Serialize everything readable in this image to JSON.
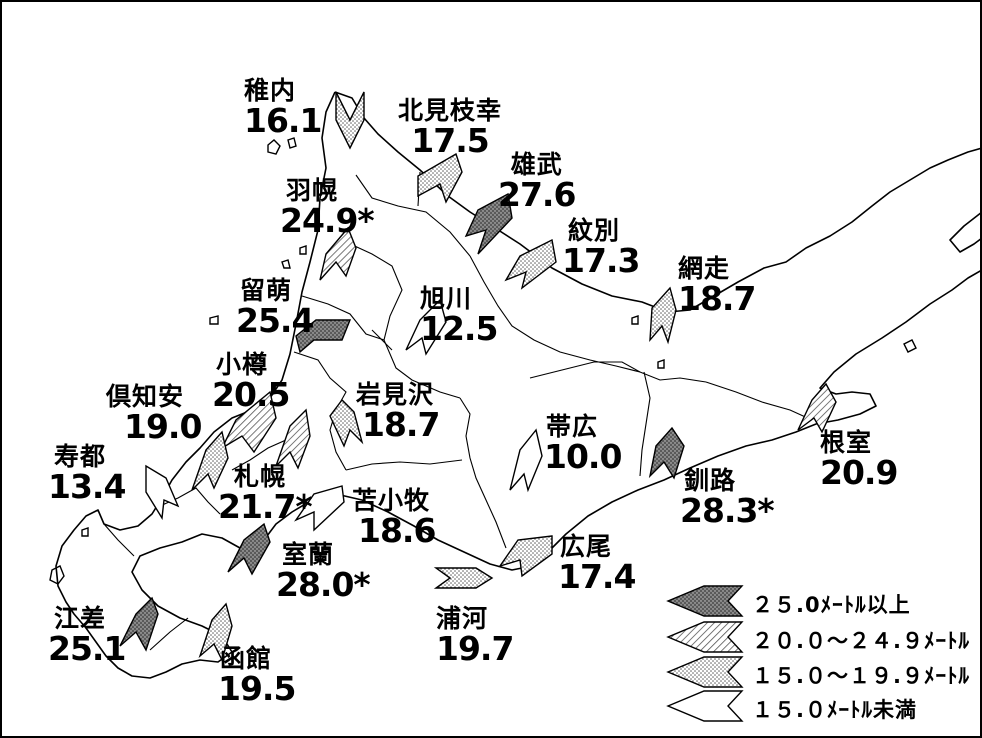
{
  "stations": [
    {
      "id": "wakkanai",
      "name": "稚内",
      "value": "16.1"
    },
    {
      "id": "kitamiesashi",
      "name": "北見枝幸",
      "value": "17.5"
    },
    {
      "id": "haboro",
      "name": "羽幌",
      "value": "24.9*"
    },
    {
      "id": "omu",
      "name": "雄武",
      "value": "27.6"
    },
    {
      "id": "monbetsu",
      "name": "紋別",
      "value": "17.3"
    },
    {
      "id": "abashiri",
      "name": "網走",
      "value": "18.7"
    },
    {
      "id": "rumoi",
      "name": "留萌",
      "value": "25.4"
    },
    {
      "id": "asahikawa",
      "name": "旭川",
      "value": "12.5"
    },
    {
      "id": "otaru",
      "name": "小樽",
      "value": "20.5"
    },
    {
      "id": "kutchan",
      "name": "倶知安",
      "value": "19.0"
    },
    {
      "id": "iwamizawa",
      "name": "岩見沢",
      "value": "18.7"
    },
    {
      "id": "nemuro",
      "name": "根室",
      "value": "20.9"
    },
    {
      "id": "obihiro",
      "name": "帯広",
      "value": "10.0"
    },
    {
      "id": "suttsu",
      "name": "寿都",
      "value": "13.4"
    },
    {
      "id": "sapporo",
      "name": "札幌",
      "value": "21.7*"
    },
    {
      "id": "tomakomai",
      "name": "苫小牧",
      "value": "18.6"
    },
    {
      "id": "kushiro",
      "name": "釧路",
      "value": "28.3*"
    },
    {
      "id": "muroran",
      "name": "室蘭",
      "value": "28.0*"
    },
    {
      "id": "hiroo",
      "name": "広尾",
      "value": "17.4"
    },
    {
      "id": "esashi",
      "name": "江差",
      "value": "25.1"
    },
    {
      "id": "urakawa",
      "name": "浦河",
      "value": "19.7"
    },
    {
      "id": "hakodate",
      "name": "函館",
      "value": "19.5"
    }
  ],
  "legend": [
    {
      "pattern": "dark",
      "label": "２５.0ﾒｰﾄﾙ以上"
    },
    {
      "pattern": "hatch",
      "label": "２０.０～２４.９ﾒｰﾄﾙ"
    },
    {
      "pattern": "dots",
      "label": "１５.０～１９.９ﾒｰﾄﾙ"
    },
    {
      "pattern": "white",
      "label": "１５.０ﾒｰﾄﾙ未満"
    }
  ],
  "patterns": {
    "dark": "#6e6e6e",
    "hatch": "#9a9a9a",
    "dots": "#b0b0b0",
    "white": "#ffffff",
    "stroke": "#000000"
  }
}
